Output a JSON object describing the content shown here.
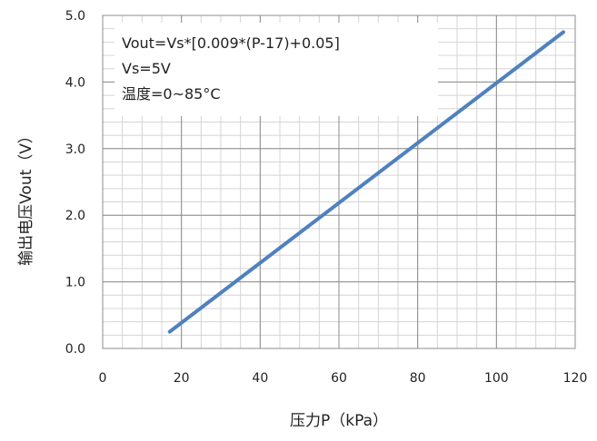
{
  "chart_data": {
    "type": "line",
    "title": "",
    "xlabel": "压力P（kPa）",
    "ylabel": "输出电压Vout（V）",
    "xlim": [
      0,
      120
    ],
    "ylim": [
      0.0,
      5.0
    ],
    "x_ticks": [
      0,
      20,
      40,
      60,
      80,
      100,
      120
    ],
    "x_tick_labels": [
      "0",
      "20",
      "40",
      "60",
      "80",
      "100",
      "120"
    ],
    "y_ticks": [
      0.0,
      1.0,
      2.0,
      3.0,
      4.0,
      5.0
    ],
    "y_tick_labels": [
      "0.0",
      "1.0",
      "2.0",
      "3.0",
      "4.0",
      "5.0"
    ],
    "grid": true,
    "grid_minor": true,
    "series": [
      {
        "color": "#4f81bd",
        "x": [
          17,
          117
        ],
        "y": [
          0.25,
          4.75
        ]
      }
    ],
    "annotation": {
      "lines": [
        "Vout=Vs*[0.009*(P-17)+0.05]",
        "Vs=5V",
        "温度=0~85°C"
      ]
    }
  }
}
